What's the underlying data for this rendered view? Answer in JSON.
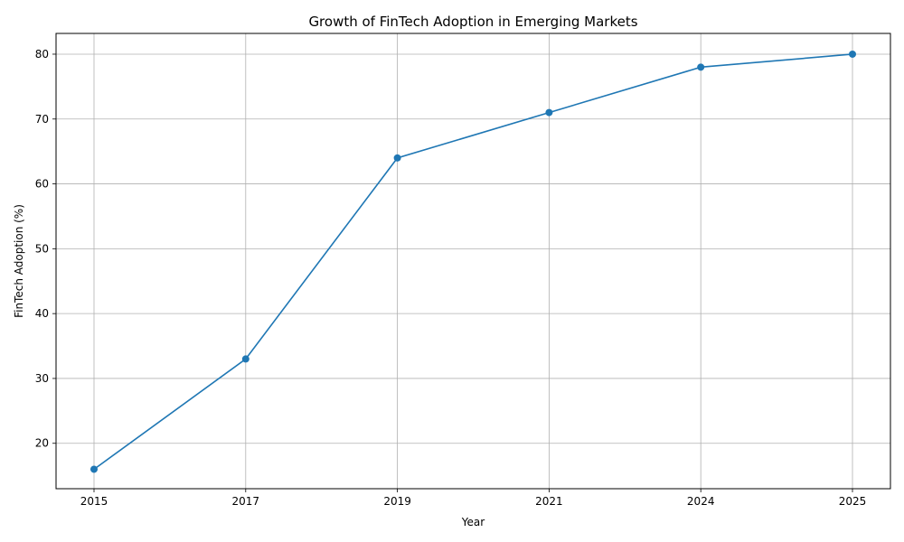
{
  "chart_data": {
    "type": "line",
    "title": "Growth of FinTech Adoption in Emerging Markets",
    "xlabel": "Year",
    "ylabel": "FinTech Adoption (%)",
    "categories": [
      "2015",
      "2017",
      "2019",
      "2021",
      "2024",
      "2025"
    ],
    "series": [
      {
        "values": [
          16,
          33,
          64,
          71,
          78,
          80
        ],
        "color": "#1f77b4",
        "marker": "circle"
      }
    ],
    "yticks": [
      20,
      30,
      40,
      50,
      60,
      70,
      80
    ],
    "ylim": [
      13,
      83.2
    ],
    "grid": true,
    "x_axis_type": "categorical"
  }
}
